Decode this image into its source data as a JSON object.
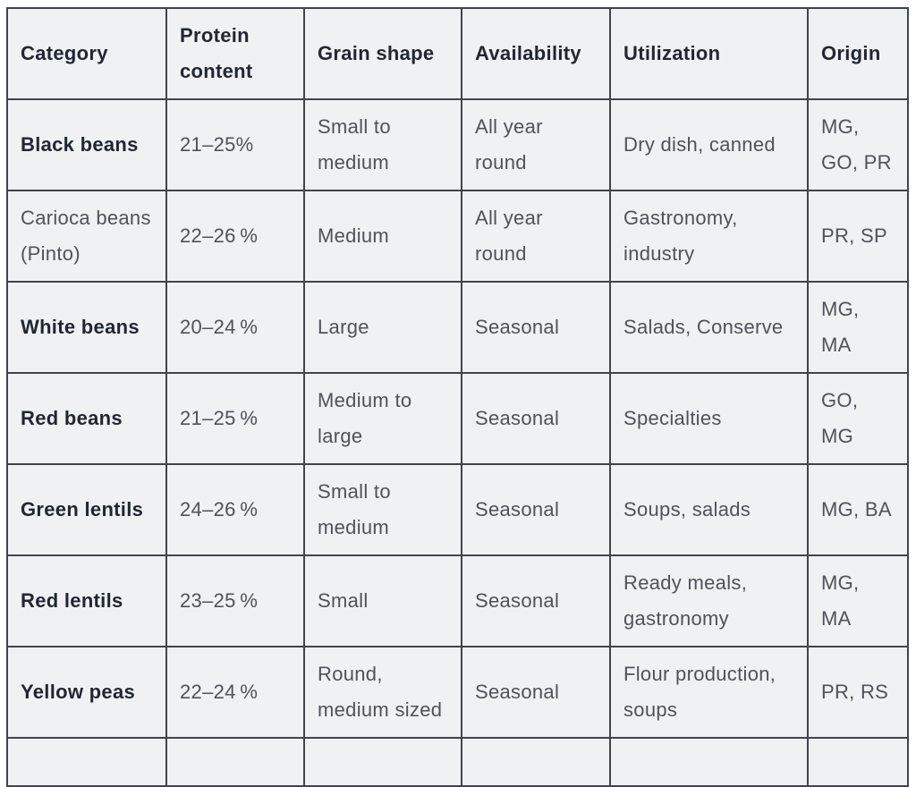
{
  "table": {
    "columns": [
      {
        "key": "category",
        "label": "Category"
      },
      {
        "key": "protein-content",
        "label": "Protein content"
      },
      {
        "key": "grain-shape",
        "label": "Grain shape"
      },
      {
        "key": "availability",
        "label": "Availability"
      },
      {
        "key": "utilization",
        "label": "Utilization"
      },
      {
        "key": "origin",
        "label": "Origin"
      }
    ],
    "rows": [
      {
        "bold": true,
        "partial": false,
        "cells": [
          "Black beans",
          "21–25%",
          "Small to medium",
          "All year round",
          "Dry dish, canned",
          "MG, GO, PR"
        ]
      },
      {
        "bold": false,
        "partial": false,
        "cells": [
          "Carioca beans (Pinto)",
          "22–26 %",
          "Medium",
          "All year round",
          "Gastronomy, industry",
          "PR, SP"
        ]
      },
      {
        "bold": true,
        "partial": false,
        "cells": [
          "White beans",
          "20–24 %",
          "Large",
          "Seasonal",
          "Salads, Conserve",
          "MG, MA"
        ]
      },
      {
        "bold": true,
        "partial": false,
        "cells": [
          "Red beans",
          "21–25 %",
          "Medium to large",
          "Seasonal",
          "Specialties",
          "GO, MG"
        ]
      },
      {
        "bold": true,
        "partial": false,
        "cells": [
          "Green lentils",
          "24–26 %",
          "Small to medium",
          "Seasonal",
          "Soups, salads",
          "MG, BA"
        ]
      },
      {
        "bold": true,
        "partial": false,
        "cells": [
          "Red lentils",
          "23–25 %",
          "Small",
          "Seasonal",
          "Ready meals, gastronomy",
          "MG, MA"
        ]
      },
      {
        "bold": true,
        "partial": false,
        "cells": [
          "Yellow peas",
          "22–24 %",
          "Round, medium sized",
          "Seasonal",
          "Flour production, soups",
          "PR, RS"
        ]
      },
      {
        "bold": false,
        "partial": true,
        "cells": [
          "",
          "",
          "",
          "",
          "",
          ""
        ]
      }
    ],
    "colors": {
      "border": "#3f444c",
      "cell_background": "#f0f1f3",
      "header_text": "#1f2733",
      "body_text": "#4d535b"
    }
  }
}
